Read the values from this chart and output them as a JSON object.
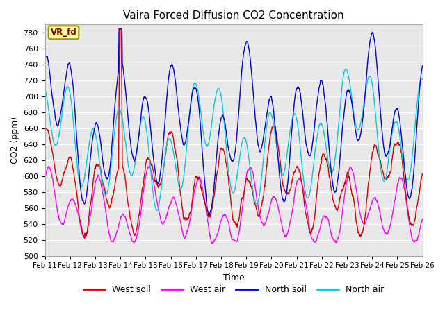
{
  "title": "Vaira Forced Diffusion CO2 Concentration",
  "xlabel": "Time",
  "ylabel": "CO2 (ppm)",
  "ylim": [
    500,
    790
  ],
  "yticks": [
    500,
    520,
    540,
    560,
    580,
    600,
    620,
    640,
    660,
    680,
    700,
    720,
    740,
    760,
    780
  ],
  "x_labels": [
    "Feb 11",
    "Feb 12",
    "Feb 13",
    "Feb 14",
    "Feb 15",
    "Feb 16",
    "Feb 17",
    "Feb 18",
    "Feb 19",
    "Feb 20",
    "Feb 21",
    "Feb 22",
    "Feb 23",
    "Feb 24",
    "Feb 25",
    "Feb 26"
  ],
  "legend_label": "VR_fd",
  "legend_box_color": "#FFFF99",
  "legend_box_edge": "#999900",
  "series": {
    "West soil": {
      "color": "#DD0000",
      "lw": 1.0
    },
    "West air": {
      "color": "#FF00FF",
      "lw": 1.0
    },
    "North soil": {
      "color": "#0000DD",
      "lw": 1.0
    },
    "North air": {
      "color": "#00CCDD",
      "lw": 1.0
    }
  },
  "plot_bg_color": "#e8e8e8",
  "background_color": "#ffffff",
  "grid_color": "#ffffff",
  "n_points": 2160
}
